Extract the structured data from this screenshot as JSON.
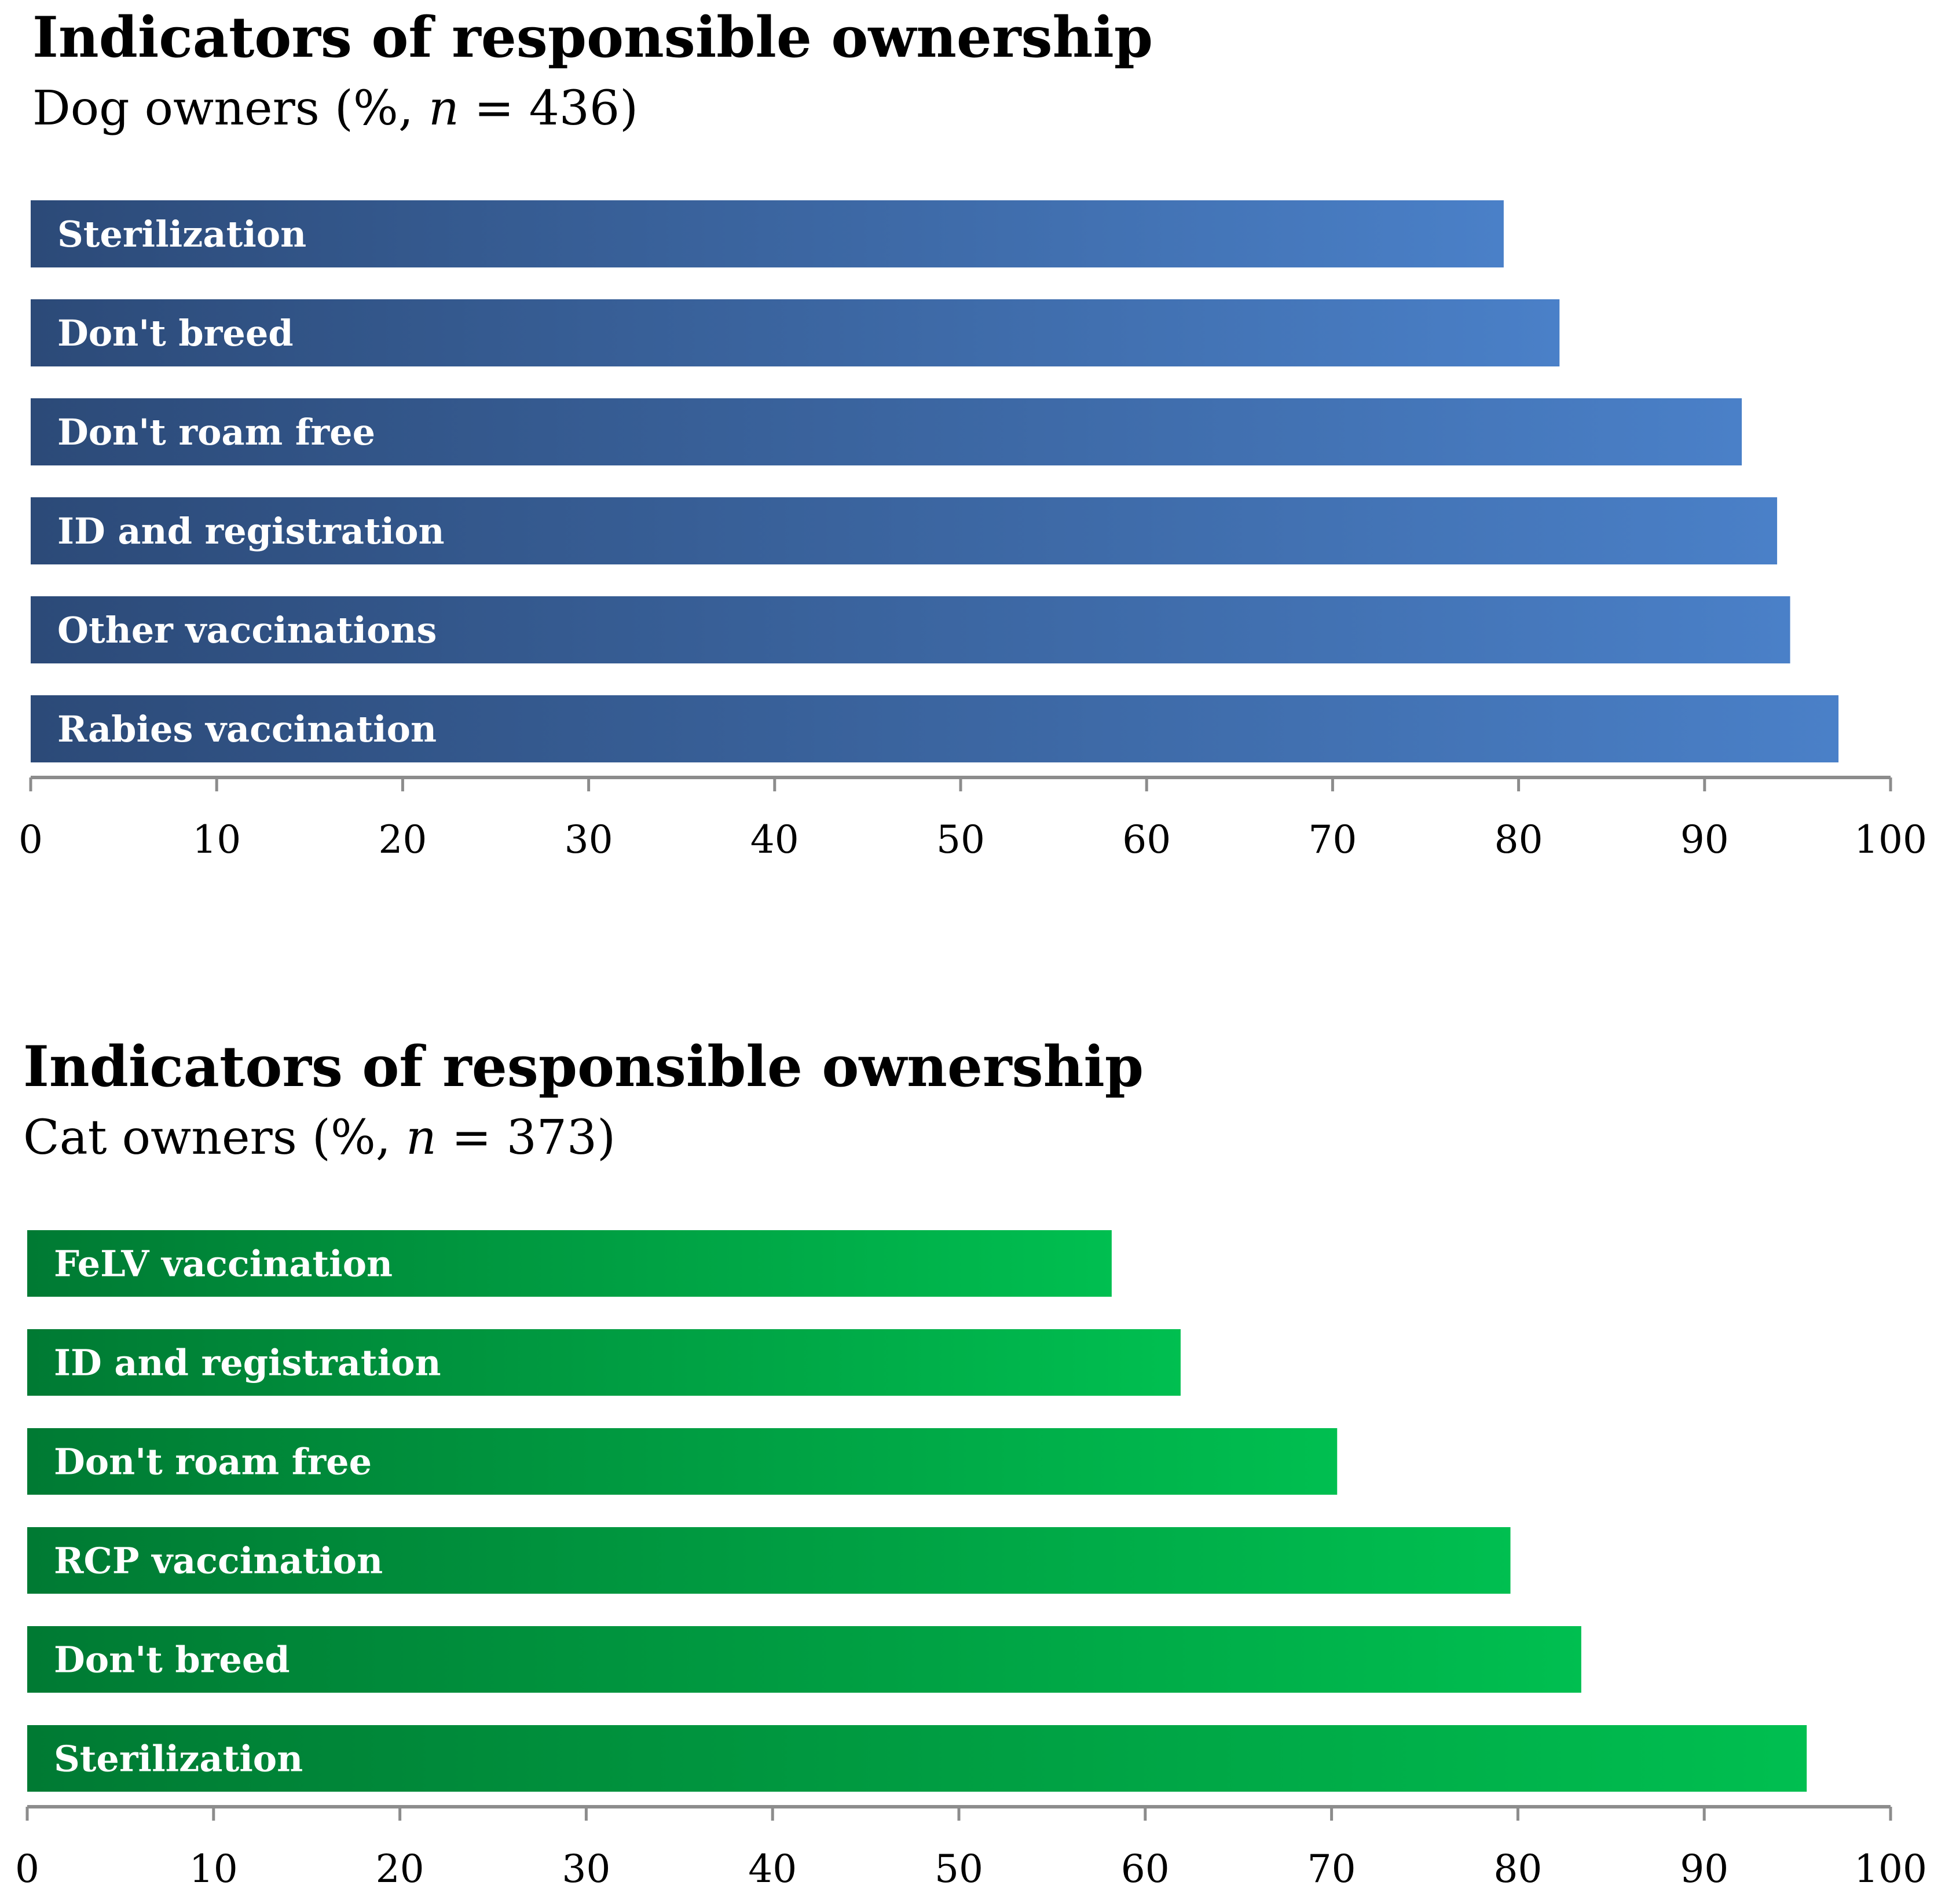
{
  "chart_data": [
    {
      "type": "bar",
      "orientation": "horizontal",
      "title": "Indicators of responsible ownership",
      "subtitle": {
        "prefix": "Dog owners (%, ",
        "n_symbol": "n",
        "suffix": " = 436)"
      },
      "categories": [
        "Sterilization",
        "Don't breed",
        "Don't roam free",
        "ID and registration",
        "Other vaccinations",
        "Rabies vaccination"
      ],
      "values": [
        79.2,
        82.2,
        92.0,
        93.9,
        94.6,
        97.2
      ],
      "xlim": [
        0,
        100
      ],
      "xticks": [
        "0",
        "10",
        "20",
        "30",
        "40",
        "50",
        "60",
        "70",
        "80",
        "90",
        "100"
      ],
      "colors": {
        "gradient_start": "#2c4a78",
        "gradient_end": "#4a80c8"
      },
      "grid": false
    },
    {
      "type": "bar",
      "orientation": "horizontal",
      "title": "Indicators of responsible ownership",
      "subtitle": {
        "prefix": "Cat owners (%, ",
        "n_symbol": "n",
        "suffix": " = 373)"
      },
      "categories": [
        "FeLV vaccination",
        "ID and registration",
        "Don't roam free",
        "RCP vaccination",
        "Don't breed",
        "Sterilization"
      ],
      "values": [
        58.2,
        61.9,
        70.3,
        79.6,
        83.4,
        95.5
      ],
      "xlim": [
        0,
        100
      ],
      "xticks": [
        "0",
        "10",
        "20",
        "30",
        "40",
        "50",
        "60",
        "70",
        "80",
        "90",
        "100"
      ],
      "colors": {
        "gradient_start": "#007a33",
        "gradient_end": "#00bf50"
      },
      "grid": false
    }
  ]
}
